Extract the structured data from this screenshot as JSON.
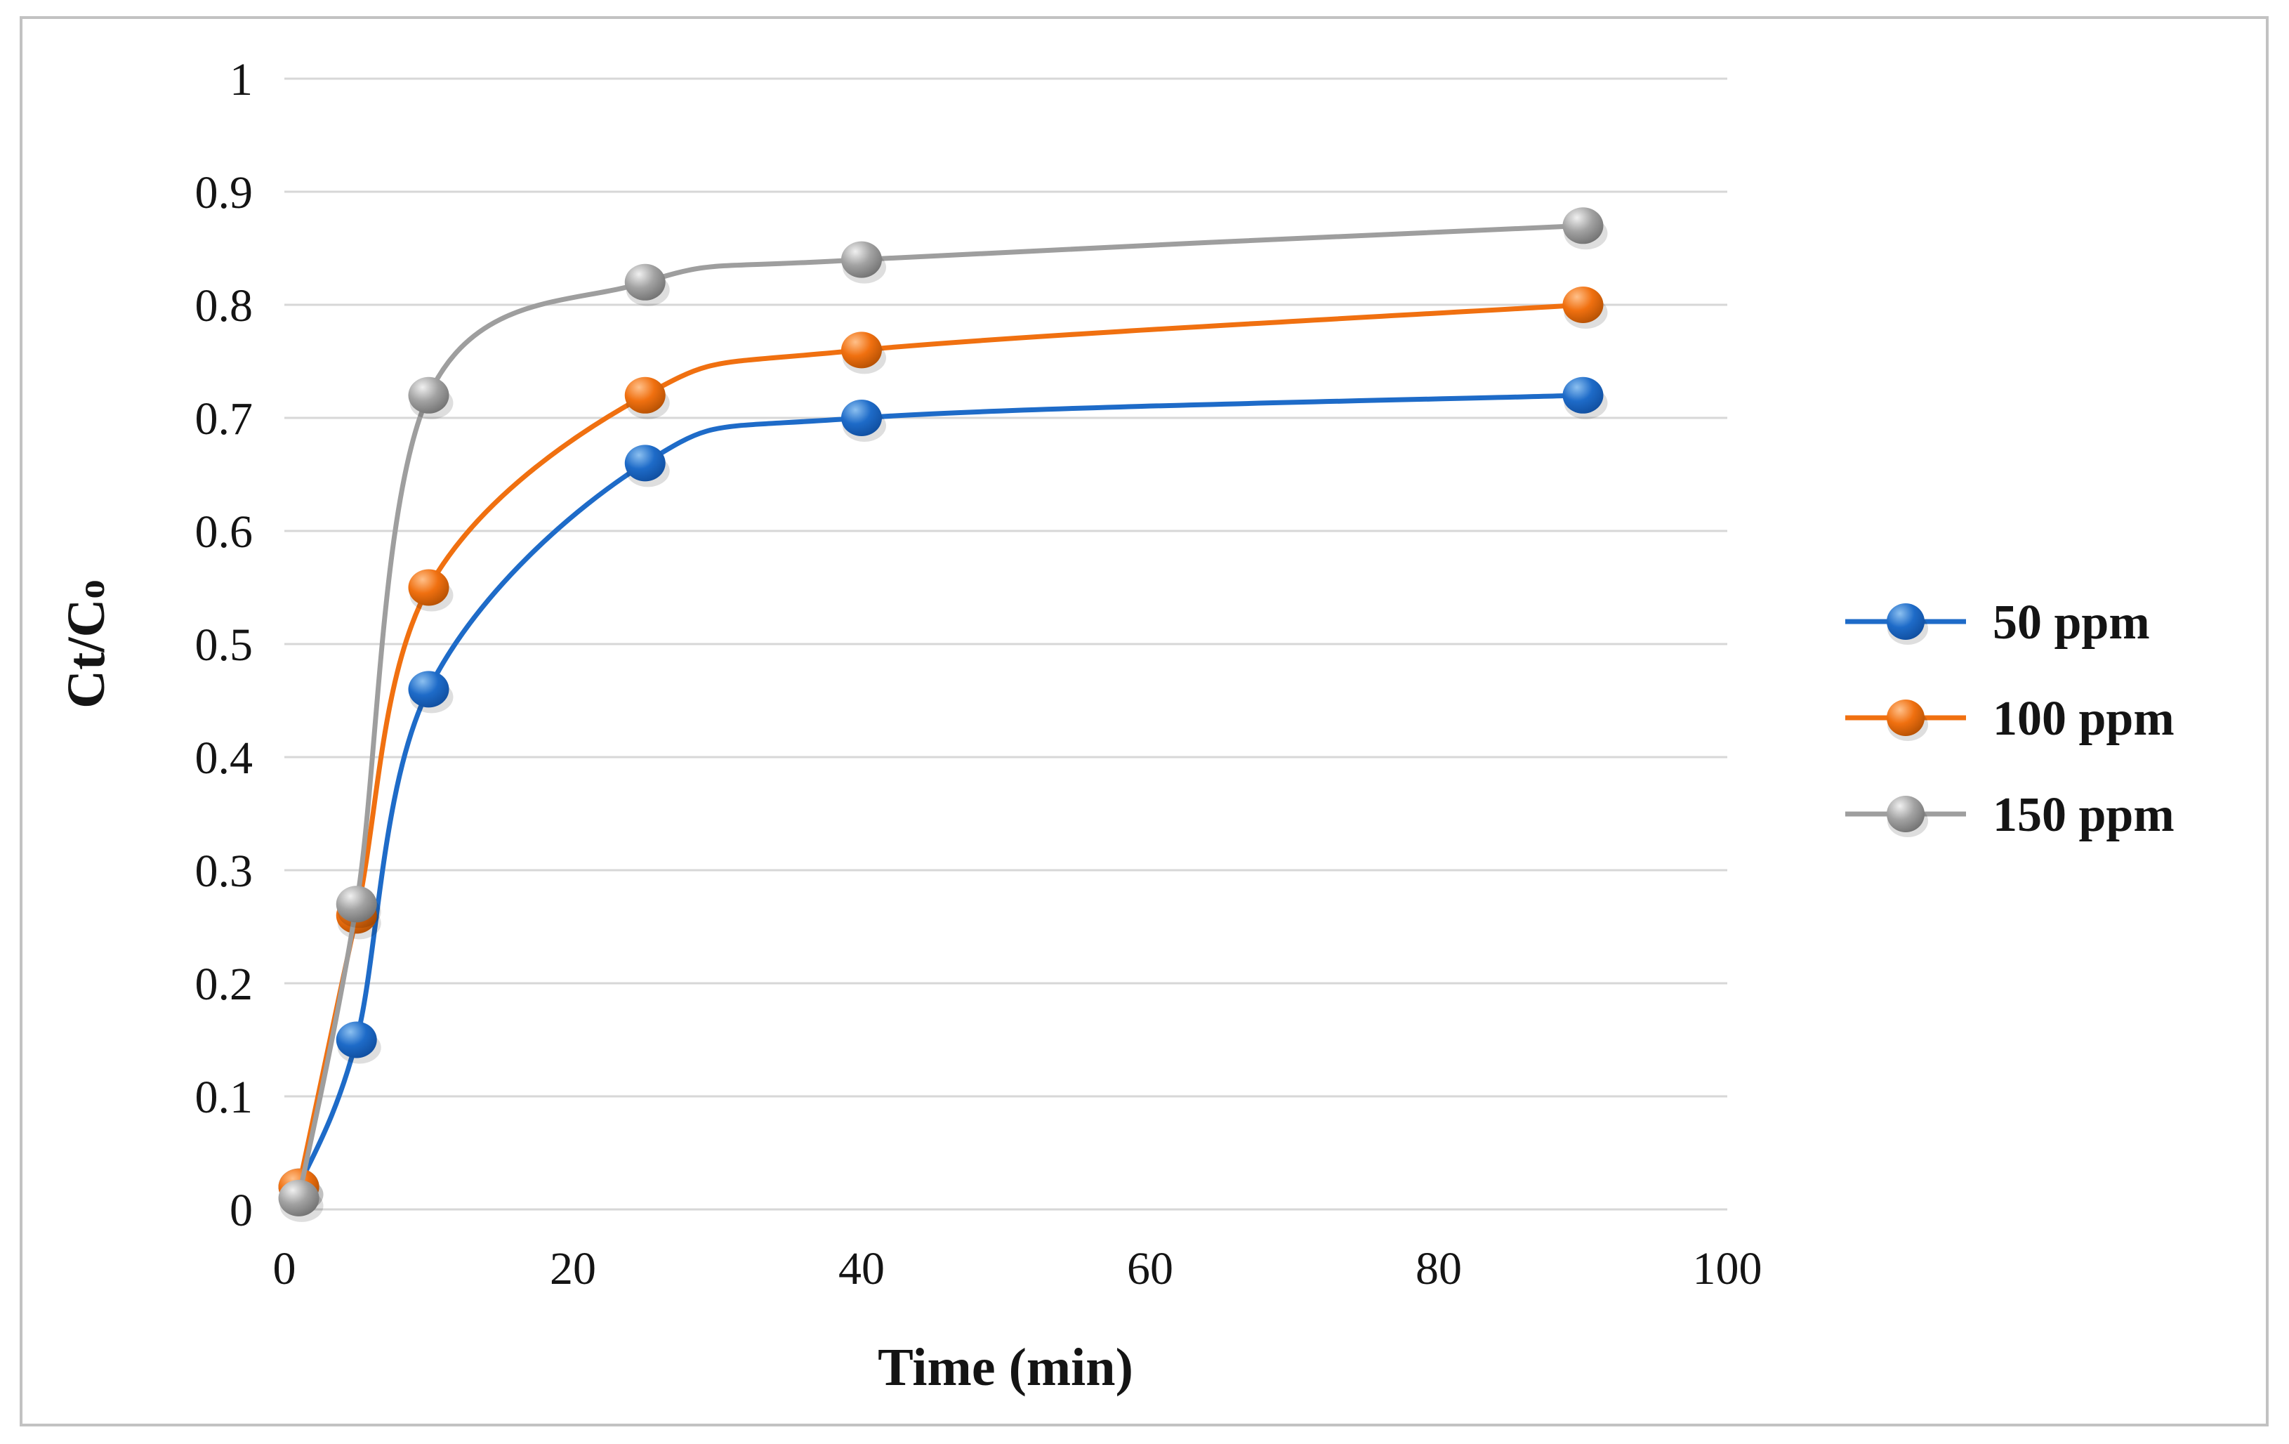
{
  "figure": {
    "background_color": "#ffffff",
    "border_color": "#c2c2c2",
    "text_color": "#141414",
    "gridline_color": "#d7d7d7"
  },
  "chart_data": {
    "type": "line",
    "title": "",
    "xlabel": "Time (min)",
    "ylabel": "Ct/Co",
    "ylabel_rich": {
      "base": "Ct/C",
      "sub": "o"
    },
    "xlim": [
      0,
      100
    ],
    "ylim": [
      0,
      1
    ],
    "grid": true,
    "legend_position": "right-middle",
    "x_tick_values": [
      0,
      20,
      40,
      60,
      80,
      100
    ],
    "x_tick_labels": [
      "0",
      "20",
      "40",
      "60",
      "80",
      "100"
    ],
    "y_tick_values": [
      0,
      0.1,
      0.2,
      0.3,
      0.4,
      0.5,
      0.6,
      0.7,
      0.8,
      0.9,
      1
    ],
    "y_tick_labels": [
      "0",
      "0.1",
      "0.2",
      "0.3",
      "0.4",
      "0.5",
      "0.6",
      "0.7",
      "0.8",
      "0.9",
      "1"
    ],
    "x": [
      1,
      5,
      10,
      25,
      40,
      90
    ],
    "series": [
      {
        "name": "50 ppm",
        "values": [
          0.02,
          0.15,
          0.46,
          0.66,
          0.7,
          0.72
        ],
        "line_color": "#1e6bc8",
        "marker": {
          "highlight": "#8cc0f0",
          "base": "#1e6bc8",
          "edge": "#0f4c9c"
        }
      },
      {
        "name": "100 ppm",
        "values": [
          0.02,
          0.26,
          0.55,
          0.72,
          0.76,
          0.8
        ],
        "line_color": "#f07010",
        "marker": {
          "highlight": "#ffc08a",
          "base": "#f07010",
          "edge": "#b04e02"
        }
      },
      {
        "name": "150 ppm",
        "values": [
          0.01,
          0.27,
          0.72,
          0.82,
          0.84,
          0.87
        ],
        "line_color": "#9e9e9e",
        "marker": {
          "highlight": "#f0f0f0",
          "base": "#a2a2a2",
          "edge": "#6e6e6e"
        }
      }
    ]
  }
}
